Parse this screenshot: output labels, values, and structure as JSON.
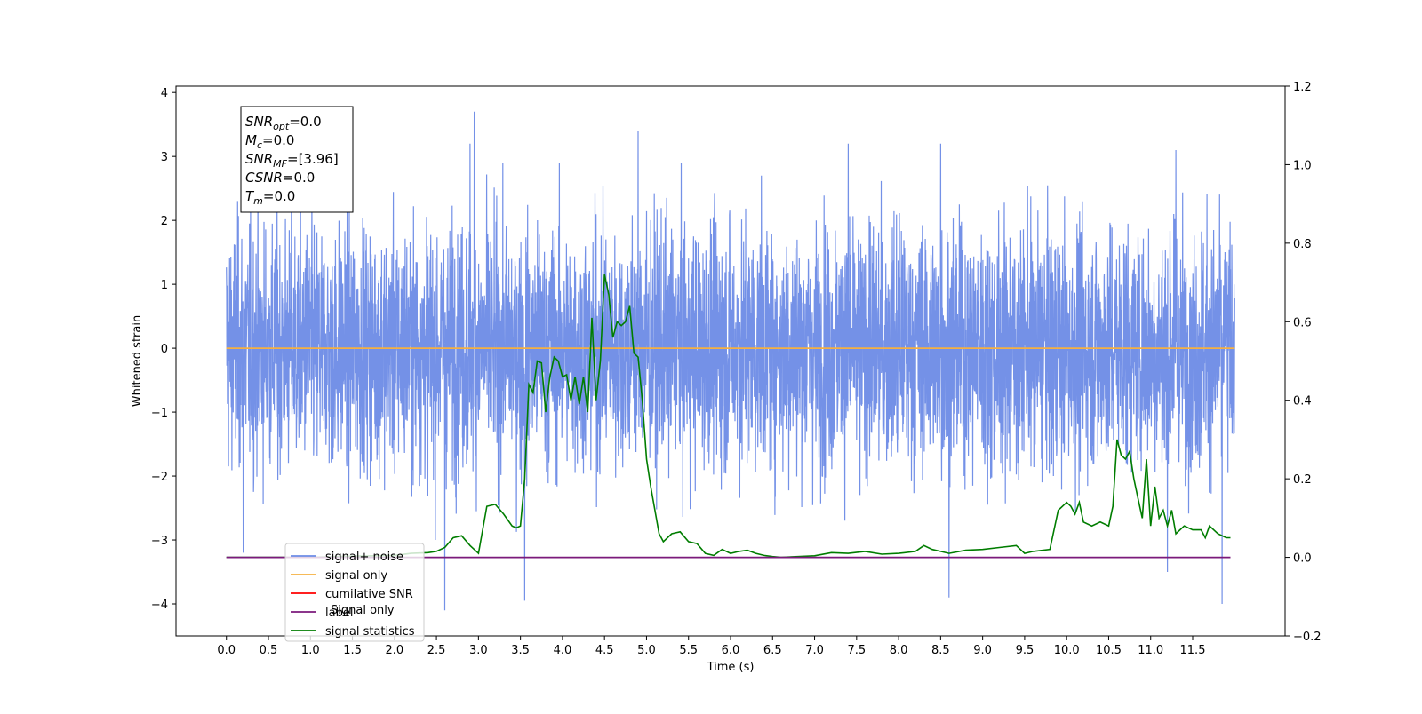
{
  "chart_data": {
    "type": "line",
    "xlabel": "Time (s)",
    "ylabel": "Whitened strain",
    "xlim": [
      -0.6,
      12.6
    ],
    "ylim": [
      -4.5,
      4.1
    ],
    "y2lim": [
      -0.2,
      1.2
    ],
    "x_ticks": [
      "0.0",
      "0.5",
      "1.0",
      "1.5",
      "2.0",
      "2.5",
      "3.0",
      "3.5",
      "4.0",
      "4.5",
      "5.0",
      "5.5",
      "6.0",
      "6.5",
      "7.0",
      "7.5",
      "8.0",
      "8.5",
      "9.0",
      "9.5",
      "10.0",
      "10.5",
      "11.0",
      "11.5"
    ],
    "y_ticks": [
      "4",
      "3",
      "2",
      "1",
      "0",
      "−1",
      "−2",
      "−3",
      "−4"
    ],
    "y2_ticks": [
      "1.2",
      "1.0",
      "0.8",
      "0.6",
      "0.4",
      "0.2",
      "0.0",
      "−0.2"
    ],
    "grid": false,
    "legend_position": "lower-left",
    "noise": {
      "name": "signal+ noise",
      "color": "#6d8be6",
      "x_range": [
        0.0,
        12.0
      ],
      "typical_band": [
        -1.8,
        1.8
      ],
      "extremes": [
        {
          "x": 2.95,
          "y": 3.7
        },
        {
          "x": 2.9,
          "y": 3.2
        },
        {
          "x": 4.9,
          "y": 3.4
        },
        {
          "x": 7.4,
          "y": 3.2
        },
        {
          "x": 8.5,
          "y": 3.2
        },
        {
          "x": 11.3,
          "y": 3.1
        },
        {
          "x": 3.55,
          "y": -3.95
        },
        {
          "x": 2.6,
          "y": -4.1
        },
        {
          "x": 8.6,
          "y": -3.9
        },
        {
          "x": 11.85,
          "y": -4.0
        },
        {
          "x": 11.2,
          "y": -3.5
        },
        {
          "x": 0.2,
          "y": -3.2
        }
      ]
    },
    "series": [
      {
        "name": "signal only",
        "color": "#f5b041",
        "axis": "left",
        "x": [
          0.0,
          12.0
        ],
        "y": [
          0.0,
          0.0
        ]
      },
      {
        "name": "cumilative SNR",
        "color": "#ff0000",
        "axis": "right",
        "x": [],
        "y": []
      },
      {
        "name": "label",
        "color": "#7b1a7b",
        "axis": "right",
        "x": [
          0.0,
          11.95
        ],
        "y": [
          0.0,
          0.0
        ]
      },
      {
        "name": "signal statistics",
        "color": "#007d00",
        "axis": "right",
        "x": [
          0.0,
          0.5,
          1.0,
          1.5,
          2.0,
          2.2,
          2.4,
          2.5,
          2.6,
          2.7,
          2.8,
          2.9,
          3.0,
          3.1,
          3.2,
          3.3,
          3.4,
          3.45,
          3.5,
          3.55,
          3.6,
          3.65,
          3.7,
          3.75,
          3.8,
          3.85,
          3.9,
          3.95,
          4.0,
          4.05,
          4.1,
          4.15,
          4.2,
          4.25,
          4.3,
          4.35,
          4.4,
          4.45,
          4.5,
          4.55,
          4.6,
          4.65,
          4.7,
          4.75,
          4.8,
          4.85,
          4.9,
          4.95,
          5.0,
          5.05,
          5.1,
          5.15,
          5.2,
          5.3,
          5.4,
          5.5,
          5.6,
          5.7,
          5.8,
          5.9,
          6.0,
          6.1,
          6.2,
          6.3,
          6.4,
          6.5,
          6.6,
          6.8,
          7.0,
          7.2,
          7.4,
          7.6,
          7.8,
          8.0,
          8.2,
          8.3,
          8.4,
          8.5,
          8.6,
          8.8,
          9.0,
          9.2,
          9.4,
          9.5,
          9.6,
          9.8,
          9.9,
          10.0,
          10.05,
          10.1,
          10.15,
          10.2,
          10.3,
          10.4,
          10.5,
          10.55,
          10.6,
          10.65,
          10.7,
          10.75,
          10.8,
          10.85,
          10.9,
          10.95,
          11.0,
          11.05,
          11.1,
          11.15,
          11.2,
          11.25,
          11.3,
          11.4,
          11.5,
          11.6,
          11.65,
          11.7,
          11.8,
          11.9,
          11.95
        ],
        "y": [
          0.0,
          0.0,
          0.0,
          0.003,
          0.005,
          0.01,
          0.012,
          0.015,
          0.025,
          0.05,
          0.055,
          0.03,
          0.01,
          0.13,
          0.135,
          0.11,
          0.08,
          0.075,
          0.08,
          0.2,
          0.44,
          0.42,
          0.5,
          0.495,
          0.37,
          0.46,
          0.51,
          0.5,
          0.46,
          0.465,
          0.4,
          0.46,
          0.39,
          0.46,
          0.37,
          0.61,
          0.4,
          0.5,
          0.72,
          0.67,
          0.56,
          0.6,
          0.59,
          0.6,
          0.64,
          0.52,
          0.51,
          0.4,
          0.25,
          0.18,
          0.12,
          0.06,
          0.04,
          0.06,
          0.065,
          0.04,
          0.035,
          0.01,
          0.005,
          0.02,
          0.01,
          0.015,
          0.018,
          0.01,
          0.005,
          0.002,
          0.0,
          0.002,
          0.004,
          0.012,
          0.01,
          0.015,
          0.008,
          0.01,
          0.015,
          0.03,
          0.02,
          0.015,
          0.01,
          0.018,
          0.02,
          0.025,
          0.03,
          0.01,
          0.015,
          0.02,
          0.12,
          0.14,
          0.13,
          0.11,
          0.14,
          0.09,
          0.08,
          0.09,
          0.08,
          0.13,
          0.3,
          0.26,
          0.25,
          0.27,
          0.2,
          0.15,
          0.1,
          0.25,
          0.08,
          0.18,
          0.1,
          0.12,
          0.08,
          0.12,
          0.06,
          0.08,
          0.07,
          0.07,
          0.05,
          0.08,
          0.06,
          0.05,
          0.05
        ]
      }
    ],
    "annotation": [
      {
        "base": "SNR",
        "sub": "opt",
        "value": "=0.0"
      },
      {
        "base": "M",
        "sub": "c",
        "value": "=0.0"
      },
      {
        "base": "SNR",
        "sub": "MF",
        "value": "=[3.96]"
      },
      {
        "base": "CSNR",
        "sub": "",
        "value": "=0.0"
      },
      {
        "base": "T",
        "sub": "m",
        "value": "=0.0"
      }
    ],
    "legend_overlap_text": [
      "Signal only"
    ]
  }
}
